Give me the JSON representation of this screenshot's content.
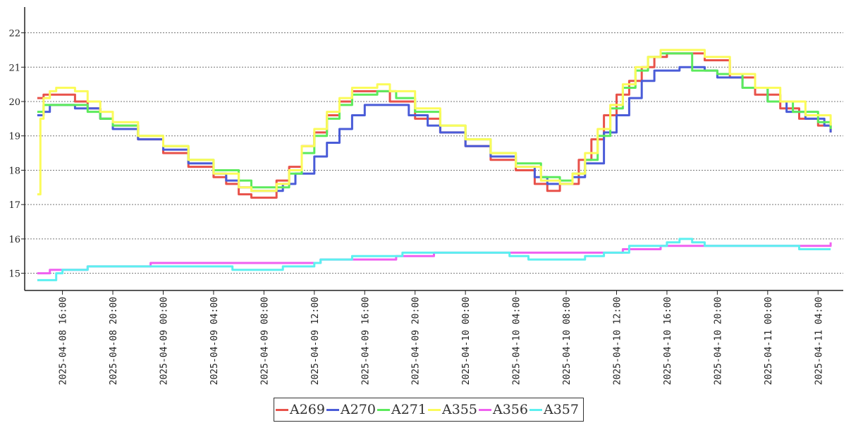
{
  "chart_data": {
    "type": "line",
    "title": "",
    "xlabel": "",
    "ylabel": "",
    "x_range": [
      "2025-04-08 13:00",
      "2025-04-11 06:00"
    ],
    "ylim": [
      14.5,
      22.75
    ],
    "y_ticks": [
      15,
      16,
      17,
      18,
      19,
      20,
      21,
      22
    ],
    "y_tick_labels": [
      "15",
      "16",
      "17",
      "18",
      "19",
      "20",
      "21",
      "22"
    ],
    "x_ticks": [
      "2025-04-08 16:00",
      "2025-04-08 20:00",
      "2025-04-09 00:00",
      "2025-04-09 04:00",
      "2025-04-09 08:00",
      "2025-04-09 12:00",
      "2025-04-09 16:00",
      "2025-04-09 20:00",
      "2025-04-10 00:00",
      "2025-04-10 04:00",
      "2025-04-10 08:00",
      "2025-04-10 12:00",
      "2025-04-10 16:00",
      "2025-04-10 20:00",
      "2025-04-11 00:00",
      "2025-04-11 04:00"
    ],
    "x_tick_labels": [
      "2025-04-08 16:00",
      "2025-04-08 20:00",
      "2025-04-09 00:00",
      "2025-04-09 04:00",
      "2025-04-09 08:00",
      "2025-04-09 12:00",
      "2025-04-09 16:00",
      "2025-04-09 20:00",
      "2025-04-10 00:00",
      "2025-04-10 04:00",
      "2025-04-10 08:00",
      "2025-04-10 12:00",
      "2025-04-10 16:00",
      "2025-04-10 20:00",
      "2025-04-11 00:00",
      "2025-04-11 04:00"
    ],
    "grid": "horizontal dotted",
    "legend_position": "bottom-center",
    "series": [
      {
        "name": "A269",
        "color": "#e8524a",
        "points": [
          [
            "2025-04-08 14:00",
            20.1
          ],
          [
            "2025-04-08 14:30",
            20.2
          ],
          [
            "2025-04-08 16:30",
            20.2
          ],
          [
            "2025-04-08 17:00",
            20.0
          ],
          [
            "2025-04-08 18:00",
            19.8
          ],
          [
            "2025-04-08 19:00",
            19.5
          ],
          [
            "2025-04-08 20:00",
            19.3
          ],
          [
            "2025-04-08 22:00",
            18.9
          ],
          [
            "2025-04-09 00:00",
            18.5
          ],
          [
            "2025-04-09 02:00",
            18.1
          ],
          [
            "2025-04-09 04:00",
            17.8
          ],
          [
            "2025-04-09 05:00",
            17.6
          ],
          [
            "2025-04-09 06:00",
            17.3
          ],
          [
            "2025-04-09 07:00",
            17.2
          ],
          [
            "2025-04-09 09:00",
            17.7
          ],
          [
            "2025-04-09 10:00",
            18.1
          ],
          [
            "2025-04-09 11:00",
            18.7
          ],
          [
            "2025-04-09 12:00",
            19.1
          ],
          [
            "2025-04-09 13:00",
            19.6
          ],
          [
            "2025-04-09 14:00",
            20.0
          ],
          [
            "2025-04-09 15:00",
            20.3
          ],
          [
            "2025-04-09 17:00",
            20.3
          ],
          [
            "2025-04-09 18:00",
            20.0
          ],
          [
            "2025-04-09 20:00",
            19.5
          ],
          [
            "2025-04-09 22:00",
            19.1
          ],
          [
            "2025-04-10 00:00",
            18.7
          ],
          [
            "2025-04-10 02:00",
            18.3
          ],
          [
            "2025-04-10 04:00",
            18.0
          ],
          [
            "2025-04-10 05:30",
            17.6
          ],
          [
            "2025-04-10 06:30",
            17.4
          ],
          [
            "2025-04-10 07:30",
            17.6
          ],
          [
            "2025-04-10 09:00",
            18.3
          ],
          [
            "2025-04-10 10:00",
            18.9
          ],
          [
            "2025-04-10 11:00",
            19.6
          ],
          [
            "2025-04-10 12:00",
            20.2
          ],
          [
            "2025-04-10 13:00",
            20.6
          ],
          [
            "2025-04-10 14:00",
            21.0
          ],
          [
            "2025-04-10 15:00",
            21.3
          ],
          [
            "2025-04-10 16:00",
            21.4
          ],
          [
            "2025-04-10 18:00",
            21.4
          ],
          [
            "2025-04-10 19:00",
            21.2
          ],
          [
            "2025-04-10 21:00",
            20.7
          ],
          [
            "2025-04-10 23:00",
            20.2
          ],
          [
            "2025-04-11 01:00",
            19.8
          ],
          [
            "2025-04-11 02:30",
            19.5
          ],
          [
            "2025-04-11 04:00",
            19.3
          ],
          [
            "2025-04-11 05:00",
            19.1
          ]
        ]
      },
      {
        "name": "A270",
        "color": "#4a5cd8",
        "points": [
          [
            "2025-04-08 14:00",
            19.6
          ],
          [
            "2025-04-08 14:30",
            19.7
          ],
          [
            "2025-04-08 15:00",
            19.9
          ],
          [
            "2025-04-08 17:00",
            19.8
          ],
          [
            "2025-04-08 19:00",
            19.5
          ],
          [
            "2025-04-08 20:00",
            19.2
          ],
          [
            "2025-04-08 22:00",
            18.9
          ],
          [
            "2025-04-09 00:00",
            18.6
          ],
          [
            "2025-04-09 02:00",
            18.2
          ],
          [
            "2025-04-09 04:00",
            17.9
          ],
          [
            "2025-04-09 05:00",
            17.7
          ],
          [
            "2025-04-09 06:00",
            17.5
          ],
          [
            "2025-04-09 07:00",
            17.4
          ],
          [
            "2025-04-09 08:30",
            17.4
          ],
          [
            "2025-04-09 09:30",
            17.6
          ],
          [
            "2025-04-09 10:30",
            17.9
          ],
          [
            "2025-04-09 12:00",
            18.4
          ],
          [
            "2025-04-09 13:00",
            18.8
          ],
          [
            "2025-04-09 14:00",
            19.2
          ],
          [
            "2025-04-09 15:00",
            19.6
          ],
          [
            "2025-04-09 16:00",
            19.9
          ],
          [
            "2025-04-09 18:30",
            19.9
          ],
          [
            "2025-04-09 19:30",
            19.6
          ],
          [
            "2025-04-09 21:00",
            19.3
          ],
          [
            "2025-04-09 22:00",
            19.1
          ],
          [
            "2025-04-10 00:00",
            18.7
          ],
          [
            "2025-04-10 02:00",
            18.4
          ],
          [
            "2025-04-10 04:00",
            18.1
          ],
          [
            "2025-04-10 05:30",
            17.8
          ],
          [
            "2025-04-10 06:30",
            17.6
          ],
          [
            "2025-04-10 07:30",
            17.6
          ],
          [
            "2025-04-10 08:30",
            17.8
          ],
          [
            "2025-04-10 09:30",
            18.2
          ],
          [
            "2025-04-10 11:00",
            19.1
          ],
          [
            "2025-04-10 12:00",
            19.6
          ],
          [
            "2025-04-10 13:00",
            20.1
          ],
          [
            "2025-04-10 14:00",
            20.6
          ],
          [
            "2025-04-10 15:00",
            20.9
          ],
          [
            "2025-04-10 17:00",
            21.0
          ],
          [
            "2025-04-10 19:00",
            20.9
          ],
          [
            "2025-04-10 20:00",
            20.7
          ],
          [
            "2025-04-10 22:00",
            20.4
          ],
          [
            "2025-04-11 00:00",
            20.0
          ],
          [
            "2025-04-11 01:30",
            19.7
          ],
          [
            "2025-04-11 03:00",
            19.5
          ],
          [
            "2025-04-11 04:30",
            19.3
          ],
          [
            "2025-04-11 05:00",
            19.1
          ]
        ]
      },
      {
        "name": "A271",
        "color": "#5cea5c",
        "points": [
          [
            "2025-04-08 14:00",
            19.7
          ],
          [
            "2025-04-08 14:30",
            19.9
          ],
          [
            "2025-04-08 17:00",
            19.9
          ],
          [
            "2025-04-08 18:00",
            19.7
          ],
          [
            "2025-04-08 19:00",
            19.5
          ],
          [
            "2025-04-08 20:00",
            19.3
          ],
          [
            "2025-04-08 22:00",
            19.0
          ],
          [
            "2025-04-09 00:00",
            18.7
          ],
          [
            "2025-04-09 02:00",
            18.3
          ],
          [
            "2025-04-09 04:00",
            18.0
          ],
          [
            "2025-04-09 06:00",
            17.7
          ],
          [
            "2025-04-09 07:00",
            17.5
          ],
          [
            "2025-04-09 09:00",
            17.5
          ],
          [
            "2025-04-09 10:00",
            17.9
          ],
          [
            "2025-04-09 11:00",
            18.5
          ],
          [
            "2025-04-09 12:00",
            19.0
          ],
          [
            "2025-04-09 13:00",
            19.5
          ],
          [
            "2025-04-09 14:00",
            19.9
          ],
          [
            "2025-04-09 15:00",
            20.2
          ],
          [
            "2025-04-09 17:00",
            20.3
          ],
          [
            "2025-04-09 18:30",
            20.1
          ],
          [
            "2025-04-09 20:00",
            19.7
          ],
          [
            "2025-04-09 22:00",
            19.3
          ],
          [
            "2025-04-10 00:00",
            18.9
          ],
          [
            "2025-04-10 02:00",
            18.5
          ],
          [
            "2025-04-10 04:00",
            18.2
          ],
          [
            "2025-04-10 06:00",
            17.8
          ],
          [
            "2025-04-10 07:30",
            17.7
          ],
          [
            "2025-04-10 08:30",
            17.9
          ],
          [
            "2025-04-10 09:30",
            18.3
          ],
          [
            "2025-04-10 10:30",
            19.0
          ],
          [
            "2025-04-10 11:30",
            19.8
          ],
          [
            "2025-04-10 12:30",
            20.4
          ],
          [
            "2025-04-10 13:30",
            20.9
          ],
          [
            "2025-04-10 14:30",
            21.3
          ],
          [
            "2025-04-10 15:30",
            21.4
          ],
          [
            "2025-04-10 17:00",
            21.4
          ],
          [
            "2025-04-10 18:00",
            20.9
          ],
          [
            "2025-04-10 19:00",
            20.9
          ],
          [
            "2025-04-10 20:00",
            20.8
          ],
          [
            "2025-04-10 22:00",
            20.4
          ],
          [
            "2025-04-11 00:00",
            20.0
          ],
          [
            "2025-04-11 02:00",
            19.7
          ],
          [
            "2025-04-11 04:00",
            19.4
          ],
          [
            "2025-04-11 05:00",
            19.2
          ]
        ]
      },
      {
        "name": "A355",
        "color": "#fbfb5a",
        "points": [
          [
            "2025-04-08 14:00",
            17.3
          ],
          [
            "2025-04-08 14:15",
            19.5
          ],
          [
            "2025-04-08 14:30",
            20.1
          ],
          [
            "2025-04-08 15:00",
            20.3
          ],
          [
            "2025-04-08 15:30",
            20.4
          ],
          [
            "2025-04-08 17:00",
            20.3
          ],
          [
            "2025-04-08 18:00",
            20.0
          ],
          [
            "2025-04-08 19:00",
            19.7
          ],
          [
            "2025-04-08 20:00",
            19.4
          ],
          [
            "2025-04-08 22:00",
            19.0
          ],
          [
            "2025-04-09 00:00",
            18.7
          ],
          [
            "2025-04-09 02:00",
            18.3
          ],
          [
            "2025-04-09 04:00",
            17.9
          ],
          [
            "2025-04-09 06:00",
            17.5
          ],
          [
            "2025-04-09 07:00",
            17.4
          ],
          [
            "2025-04-09 09:00",
            17.6
          ],
          [
            "2025-04-09 10:00",
            18.0
          ],
          [
            "2025-04-09 11:00",
            18.7
          ],
          [
            "2025-04-09 12:00",
            19.2
          ],
          [
            "2025-04-09 13:00",
            19.7
          ],
          [
            "2025-04-09 14:00",
            20.1
          ],
          [
            "2025-04-09 15:00",
            20.4
          ],
          [
            "2025-04-09 17:00",
            20.5
          ],
          [
            "2025-04-09 18:00",
            20.3
          ],
          [
            "2025-04-09 20:00",
            19.8
          ],
          [
            "2025-04-09 22:00",
            19.3
          ],
          [
            "2025-04-10 00:00",
            18.9
          ],
          [
            "2025-04-10 02:00",
            18.5
          ],
          [
            "2025-04-10 04:00",
            18.1
          ],
          [
            "2025-04-10 06:00",
            17.7
          ],
          [
            "2025-04-10 07:30",
            17.6
          ],
          [
            "2025-04-10 08:30",
            17.9
          ],
          [
            "2025-04-10 09:30",
            18.5
          ],
          [
            "2025-04-10 10:30",
            19.2
          ],
          [
            "2025-04-10 11:30",
            19.9
          ],
          [
            "2025-04-10 12:30",
            20.5
          ],
          [
            "2025-04-10 13:30",
            21.0
          ],
          [
            "2025-04-10 14:30",
            21.3
          ],
          [
            "2025-04-10 15:30",
            21.5
          ],
          [
            "2025-04-10 18:00",
            21.5
          ],
          [
            "2025-04-10 19:00",
            21.3
          ],
          [
            "2025-04-10 21:00",
            20.8
          ],
          [
            "2025-04-10 23:00",
            20.4
          ],
          [
            "2025-04-11 01:00",
            20.0
          ],
          [
            "2025-04-11 03:00",
            19.6
          ],
          [
            "2025-04-11 05:00",
            19.3
          ]
        ]
      },
      {
        "name": "A356",
        "color": "#f060f0",
        "points": [
          [
            "2025-04-08 14:00",
            15.0
          ],
          [
            "2025-04-08 14:45",
            15.0
          ],
          [
            "2025-04-08 15:00",
            15.1
          ],
          [
            "2025-04-08 17:30",
            15.1
          ],
          [
            "2025-04-08 18:00",
            15.2
          ],
          [
            "2025-04-08 22:00",
            15.2
          ],
          [
            "2025-04-08 23:00",
            15.3
          ],
          [
            "2025-04-09 12:00",
            15.3
          ],
          [
            "2025-04-09 12:30",
            15.4
          ],
          [
            "2025-04-09 18:00",
            15.4
          ],
          [
            "2025-04-09 18:30",
            15.5
          ],
          [
            "2025-04-09 21:00",
            15.5
          ],
          [
            "2025-04-09 21:30",
            15.6
          ],
          [
            "2025-04-10 11:00",
            15.6
          ],
          [
            "2025-04-10 12:30",
            15.7
          ],
          [
            "2025-04-10 15:00",
            15.7
          ],
          [
            "2025-04-10 15:30",
            15.8
          ],
          [
            "2025-04-11 05:00",
            15.9
          ]
        ]
      },
      {
        "name": "A357",
        "color": "#5cf0f0",
        "points": [
          [
            "2025-04-08 14:00",
            14.8
          ],
          [
            "2025-04-08 15:30",
            15.0
          ],
          [
            "2025-04-08 16:00",
            15.1
          ],
          [
            "2025-04-08 17:30",
            15.1
          ],
          [
            "2025-04-08 18:00",
            15.2
          ],
          [
            "2025-04-09 01:00",
            15.2
          ],
          [
            "2025-04-09 02:00",
            15.2
          ],
          [
            "2025-04-09 05:00",
            15.2
          ],
          [
            "2025-04-09 05:30",
            15.1
          ],
          [
            "2025-04-09 09:00",
            15.1
          ],
          [
            "2025-04-09 09:30",
            15.2
          ],
          [
            "2025-04-09 10:30",
            15.2
          ],
          [
            "2025-04-09 12:00",
            15.3
          ],
          [
            "2025-04-09 12:30",
            15.4
          ],
          [
            "2025-04-09 14:30",
            15.4
          ],
          [
            "2025-04-09 15:00",
            15.5
          ],
          [
            "2025-04-09 17:30",
            15.5
          ],
          [
            "2025-04-09 18:00",
            15.5
          ],
          [
            "2025-04-09 19:00",
            15.6
          ],
          [
            "2025-04-10 03:00",
            15.6
          ],
          [
            "2025-04-10 03:30",
            15.5
          ],
          [
            "2025-04-10 05:00",
            15.4
          ],
          [
            "2025-04-10 09:00",
            15.4
          ],
          [
            "2025-04-10 09:30",
            15.5
          ],
          [
            "2025-04-10 11:00",
            15.6
          ],
          [
            "2025-04-10 13:00",
            15.8
          ],
          [
            "2025-04-10 16:00",
            15.9
          ],
          [
            "2025-04-10 17:00",
            16.0
          ],
          [
            "2025-04-10 18:00",
            15.9
          ],
          [
            "2025-04-10 19:00",
            15.8
          ],
          [
            "2025-04-11 02:00",
            15.8
          ],
          [
            "2025-04-11 02:30",
            15.7
          ],
          [
            "2025-04-11 05:00",
            15.7
          ]
        ]
      }
    ]
  }
}
